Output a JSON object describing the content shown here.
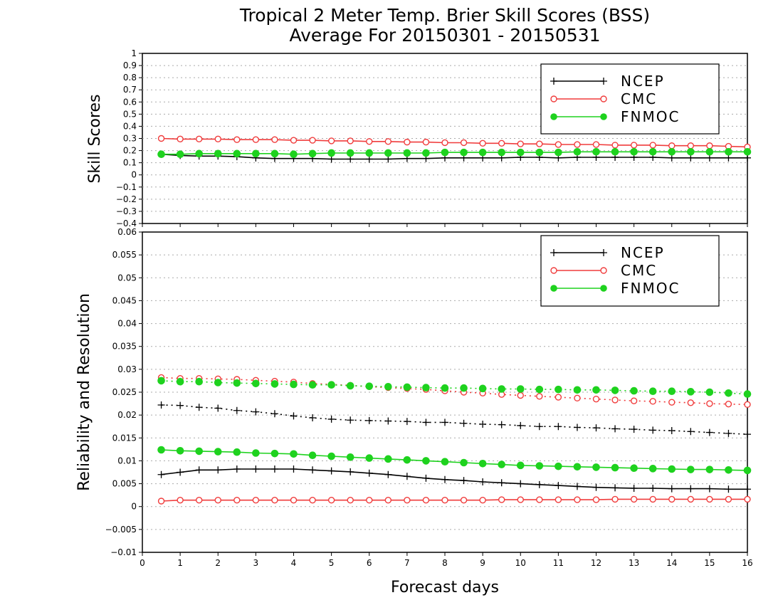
{
  "title": "Tropical 2 Meter Temp. Brier Skill Scores (BSS)",
  "subtitle": "Average For 20150301 - 20150531",
  "xlabel": "Forecast days",
  "colors": {
    "NCEP": "#000000",
    "CMC": "#f03c3c",
    "FNMOC": "#1ed21e",
    "grid": "#aaaaaa"
  },
  "chart_data": [
    {
      "type": "line",
      "ylabel": "Skill Scores",
      "xlim": [
        0,
        16
      ],
      "ylim": [
        -0.4,
        1
      ],
      "x_ticks": [
        "0",
        "1",
        "2",
        "3",
        "4",
        "5",
        "6",
        "7",
        "8",
        "9",
        "10",
        "11",
        "12",
        "13",
        "14",
        "15",
        "16"
      ],
      "y_ticks": [
        "1",
        "0.9",
        "0.8",
        "0.7",
        "0.6",
        "0.5",
        "0.4",
        "0.3",
        "0.2",
        "0.1",
        "0",
        "−0.1",
        "−0.2",
        "−0.3",
        "−0.4"
      ],
      "grid": true,
      "legend": "top-right",
      "legend_entries": [
        "NCEP",
        "CMC",
        "FNMOC"
      ],
      "x": [
        0.5,
        1,
        1.5,
        2,
        2.5,
        3,
        3.5,
        4,
        4.5,
        5,
        5.5,
        6,
        6.5,
        7,
        7.5,
        8,
        8.5,
        9,
        9.5,
        10,
        10.5,
        11,
        11.5,
        12,
        12.5,
        13,
        13.5,
        14,
        14.5,
        15,
        15.5,
        16
      ],
      "series": [
        {
          "name": "NCEP",
          "style": "plus-solid",
          "values": [
            0.17,
            0.16,
            0.155,
            0.155,
            0.15,
            0.14,
            0.135,
            0.135,
            0.135,
            0.13,
            0.13,
            0.13,
            0.13,
            0.135,
            0.135,
            0.14,
            0.14,
            0.14,
            0.14,
            0.145,
            0.145,
            0.14,
            0.145,
            0.145,
            0.145,
            0.145,
            0.145,
            0.14,
            0.14,
            0.14,
            0.14,
            0.14
          ]
        },
        {
          "name": "CMC",
          "style": "open-circle-solid",
          "values": [
            0.3,
            0.295,
            0.295,
            0.295,
            0.29,
            0.29,
            0.29,
            0.285,
            0.285,
            0.28,
            0.28,
            0.275,
            0.275,
            0.27,
            0.27,
            0.265,
            0.265,
            0.26,
            0.26,
            0.255,
            0.255,
            0.25,
            0.25,
            0.25,
            0.245,
            0.245,
            0.245,
            0.24,
            0.24,
            0.24,
            0.235,
            0.23
          ]
        },
        {
          "name": "FNMOC",
          "style": "filled-circle-solid",
          "values": [
            0.17,
            0.17,
            0.175,
            0.175,
            0.175,
            0.175,
            0.175,
            0.17,
            0.175,
            0.18,
            0.18,
            0.18,
            0.18,
            0.18,
            0.18,
            0.185,
            0.185,
            0.185,
            0.185,
            0.185,
            0.185,
            0.185,
            0.19,
            0.19,
            0.19,
            0.19,
            0.19,
            0.19,
            0.19,
            0.19,
            0.19,
            0.19
          ]
        }
      ]
    },
    {
      "type": "line",
      "ylabel": "Reliability and Resolution",
      "xlim": [
        0,
        16
      ],
      "ylim": [
        -0.01,
        0.06
      ],
      "x_ticks": [
        "0",
        "1",
        "2",
        "3",
        "4",
        "5",
        "6",
        "7",
        "8",
        "9",
        "10",
        "11",
        "12",
        "13",
        "14",
        "15",
        "16"
      ],
      "y_ticks": [
        "0.06",
        "0.055",
        "0.05",
        "0.045",
        "0.04",
        "0.035",
        "0.03",
        "0.025",
        "0.02",
        "0.015",
        "0.01",
        "0.005",
        "0",
        "−0.005",
        "−0.01"
      ],
      "grid": true,
      "legend": "top-right",
      "legend_entries": [
        "NCEP",
        "CMC",
        "FNMOC"
      ],
      "x": [
        0.5,
        1,
        1.5,
        2,
        2.5,
        3,
        3.5,
        4,
        4.5,
        5,
        5.5,
        6,
        6.5,
        7,
        7.5,
        8,
        8.5,
        9,
        9.5,
        10,
        10.5,
        11,
        11.5,
        12,
        12.5,
        13,
        13.5,
        14,
        14.5,
        15,
        15.5,
        16
      ],
      "series": [
        {
          "name": "NCEP",
          "style": "plus-dotted",
          "metric": "resolution",
          "values": [
            0.0222,
            0.0221,
            0.0217,
            0.0215,
            0.021,
            0.0207,
            0.0203,
            0.0198,
            0.0194,
            0.0191,
            0.0189,
            0.0188,
            0.0187,
            0.0186,
            0.0184,
            0.0184,
            0.0182,
            0.018,
            0.0179,
            0.0177,
            0.0175,
            0.0175,
            0.0173,
            0.0172,
            0.017,
            0.0169,
            0.0167,
            0.0166,
            0.0164,
            0.0162,
            0.016,
            0.0158
          ]
        },
        {
          "name": "CMC",
          "style": "open-circle-dotted",
          "metric": "resolution",
          "values": [
            0.0282,
            0.028,
            0.028,
            0.0279,
            0.0278,
            0.0276,
            0.0274,
            0.0272,
            0.0269,
            0.0267,
            0.0265,
            0.0262,
            0.026,
            0.0258,
            0.0256,
            0.0253,
            0.025,
            0.0248,
            0.0245,
            0.0243,
            0.0241,
            0.0239,
            0.0237,
            0.0235,
            0.0233,
            0.0231,
            0.023,
            0.0228,
            0.0227,
            0.0225,
            0.0224,
            0.0223
          ]
        },
        {
          "name": "FNMOC",
          "style": "filled-circle-dotted",
          "metric": "resolution",
          "values": [
            0.0275,
            0.0273,
            0.0273,
            0.0271,
            0.027,
            0.0269,
            0.0268,
            0.0267,
            0.0266,
            0.0266,
            0.0264,
            0.0263,
            0.0262,
            0.0261,
            0.026,
            0.0259,
            0.0259,
            0.0258,
            0.0257,
            0.0257,
            0.0256,
            0.0256,
            0.0255,
            0.0255,
            0.0254,
            0.0253,
            0.0252,
            0.0252,
            0.0251,
            0.025,
            0.0248,
            0.0246
          ]
        },
        {
          "name": "NCEP",
          "style": "plus-solid",
          "metric": "reliability",
          "values": [
            0.007,
            0.0075,
            0.008,
            0.008,
            0.0082,
            0.0082,
            0.0082,
            0.0082,
            0.008,
            0.0078,
            0.0076,
            0.0073,
            0.007,
            0.0066,
            0.0062,
            0.0059,
            0.0057,
            0.0054,
            0.0052,
            0.005,
            0.0048,
            0.0046,
            0.0044,
            0.0042,
            0.0041,
            0.004,
            0.004,
            0.0039,
            0.0039,
            0.0039,
            0.0038,
            0.0038
          ]
        },
        {
          "name": "CMC",
          "style": "open-circle-solid",
          "metric": "reliability",
          "values": [
            0.0012,
            0.0014,
            0.0014,
            0.0014,
            0.0014,
            0.0014,
            0.0014,
            0.0014,
            0.0014,
            0.0014,
            0.0014,
            0.0014,
            0.0014,
            0.0014,
            0.0014,
            0.0014,
            0.0014,
            0.0014,
            0.0015,
            0.0015,
            0.0015,
            0.0015,
            0.0015,
            0.0015,
            0.0016,
            0.0016,
            0.0016,
            0.0016,
            0.0016,
            0.0016,
            0.0016,
            0.0016
          ]
        },
        {
          "name": "FNMOC",
          "style": "filled-circle-solid",
          "metric": "reliability",
          "values": [
            0.0124,
            0.0122,
            0.0121,
            0.012,
            0.0119,
            0.0117,
            0.0116,
            0.0115,
            0.0112,
            0.011,
            0.0108,
            0.0106,
            0.0104,
            0.0102,
            0.01,
            0.0098,
            0.0096,
            0.0094,
            0.0092,
            0.009,
            0.0089,
            0.0088,
            0.0087,
            0.0086,
            0.0085,
            0.0084,
            0.0083,
            0.0082,
            0.0081,
            0.0081,
            0.008,
            0.0079
          ]
        }
      ]
    }
  ]
}
